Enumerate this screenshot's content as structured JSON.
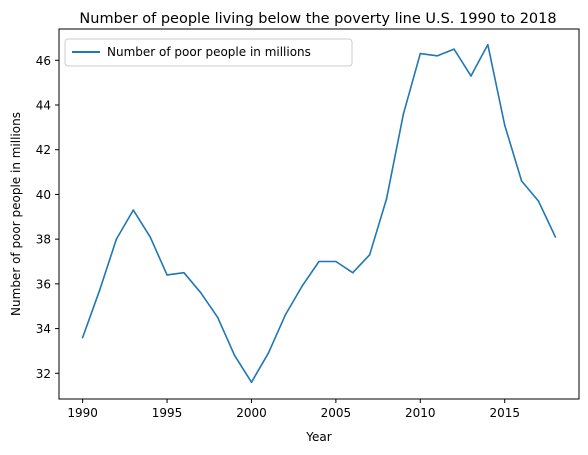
{
  "chart_data": {
    "type": "line",
    "title": "Number of people living below the poverty line U.S. 1990 to 2018",
    "xlabel": "Year",
    "ylabel": "Number of poor people in millions",
    "xlim": [
      1988.6,
      2019.4
    ],
    "ylim": [
      30.85,
      47.4
    ],
    "xticks": [
      1990,
      1995,
      2000,
      2005,
      2010,
      2015
    ],
    "yticks": [
      32,
      34,
      36,
      38,
      40,
      42,
      44,
      46
    ],
    "grid": false,
    "legend_position": "top-left",
    "series": [
      {
        "name": "Number of poor people in millions",
        "color": "#1f77b4",
        "x": [
          1990,
          1991,
          1992,
          1993,
          1994,
          1995,
          1996,
          1997,
          1998,
          1999,
          2000,
          2001,
          2002,
          2003,
          2004,
          2005,
          2006,
          2007,
          2008,
          2009,
          2010,
          2011,
          2012,
          2013,
          2014,
          2015,
          2016,
          2017,
          2018
        ],
        "y": [
          33.6,
          35.7,
          38.0,
          39.3,
          38.1,
          36.4,
          36.5,
          35.6,
          34.5,
          32.8,
          31.6,
          32.9,
          34.6,
          35.9,
          37.0,
          37.0,
          36.5,
          37.3,
          39.8,
          43.6,
          46.3,
          46.2,
          46.5,
          45.3,
          46.7,
          43.1,
          40.6,
          39.7,
          38.1
        ]
      }
    ]
  }
}
